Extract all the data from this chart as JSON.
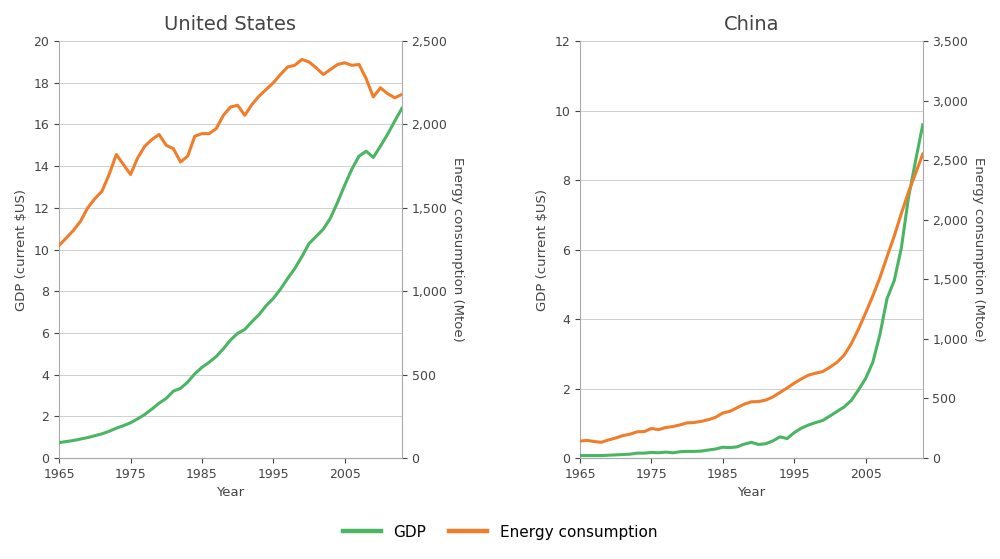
{
  "title_us": "United States",
  "title_cn": "China",
  "xlabel": "Year",
  "ylabel_left": "GDP (current $US)",
  "ylabel_right": "Energy consumption (Mtoe)",
  "gdp_color": "#4ab562",
  "energy_color": "#f07d2a",
  "legend_gdp": "GDP",
  "legend_energy": "Energy consumption",
  "us_years": [
    1965,
    1966,
    1967,
    1968,
    1969,
    1970,
    1971,
    1972,
    1973,
    1974,
    1975,
    1976,
    1977,
    1978,
    1979,
    1980,
    1981,
    1982,
    1983,
    1984,
    1985,
    1986,
    1987,
    1988,
    1989,
    1990,
    1991,
    1992,
    1993,
    1994,
    1995,
    1996,
    1997,
    1998,
    1999,
    2000,
    2001,
    2002,
    2003,
    2004,
    2005,
    2006,
    2007,
    2008,
    2009,
    2010,
    2011,
    2012,
    2013
  ],
  "us_gdp": [
    0.74,
    0.79,
    0.84,
    0.91,
    0.98,
    1.07,
    1.16,
    1.28,
    1.43,
    1.55,
    1.69,
    1.88,
    2.09,
    2.35,
    2.63,
    2.86,
    3.21,
    3.34,
    3.64,
    4.04,
    4.35,
    4.59,
    4.87,
    5.24,
    5.66,
    5.98,
    6.17,
    6.54,
    6.88,
    7.31,
    7.66,
    8.1,
    8.61,
    9.09,
    9.66,
    10.29,
    10.63,
    10.98,
    11.51,
    12.27,
    13.09,
    13.86,
    14.48,
    14.72,
    14.42,
    14.96,
    15.53,
    16.16,
    16.77
  ],
  "us_energy": [
    1275,
    1320,
    1365,
    1420,
    1500,
    1555,
    1600,
    1700,
    1820,
    1760,
    1700,
    1800,
    1870,
    1910,
    1940,
    1875,
    1855,
    1775,
    1810,
    1930,
    1945,
    1945,
    1975,
    2055,
    2105,
    2115,
    2055,
    2120,
    2170,
    2210,
    2250,
    2300,
    2345,
    2355,
    2390,
    2375,
    2340,
    2300,
    2330,
    2360,
    2370,
    2355,
    2360,
    2275,
    2165,
    2220,
    2185,
    2160,
    2180
  ],
  "cn_years": [
    1965,
    1966,
    1967,
    1968,
    1969,
    1970,
    1971,
    1972,
    1973,
    1974,
    1975,
    1976,
    1977,
    1978,
    1979,
    1980,
    1981,
    1982,
    1983,
    1984,
    1985,
    1986,
    1987,
    1988,
    1989,
    1990,
    1991,
    1992,
    1993,
    1994,
    1995,
    1996,
    1997,
    1998,
    1999,
    2000,
    2001,
    2002,
    2003,
    2004,
    2005,
    2006,
    2007,
    2008,
    2009,
    2010,
    2011,
    2012,
    2013
  ],
  "cn_gdp": [
    0.07,
    0.07,
    0.07,
    0.07,
    0.08,
    0.09,
    0.1,
    0.11,
    0.14,
    0.14,
    0.16,
    0.15,
    0.17,
    0.15,
    0.18,
    0.19,
    0.19,
    0.2,
    0.23,
    0.26,
    0.31,
    0.3,
    0.32,
    0.4,
    0.45,
    0.39,
    0.41,
    0.49,
    0.61,
    0.56,
    0.73,
    0.86,
    0.95,
    1.02,
    1.08,
    1.21,
    1.34,
    1.47,
    1.66,
    1.96,
    2.29,
    2.75,
    3.55,
    4.59,
    5.1,
    6.04,
    7.49,
    8.56,
    9.59
  ],
  "cn_energy": [
    142,
    148,
    138,
    132,
    152,
    168,
    188,
    200,
    220,
    222,
    248,
    238,
    256,
    264,
    278,
    295,
    298,
    308,
    322,
    342,
    378,
    392,
    422,
    452,
    472,
    474,
    486,
    512,
    550,
    588,
    628,
    664,
    696,
    712,
    726,
    762,
    804,
    864,
    960,
    1082,
    1218,
    1360,
    1514,
    1690,
    1862,
    2052,
    2232,
    2390,
    2552
  ],
  "us_gdp_ylim": [
    0,
    20
  ],
  "us_gdp_yticks": [
    0,
    2,
    4,
    6,
    8,
    10,
    12,
    14,
    16,
    18,
    20
  ],
  "us_energy_ylim": [
    0,
    2500
  ],
  "us_energy_yticks": [
    0,
    500,
    1000,
    1500,
    2000,
    2500
  ],
  "cn_gdp_ylim": [
    0,
    12
  ],
  "cn_gdp_yticks": [
    0,
    2,
    4,
    6,
    8,
    10,
    12
  ],
  "cn_energy_ylim": [
    0,
    3500
  ],
  "cn_energy_yticks": [
    0,
    500,
    1000,
    1500,
    2000,
    2500,
    3000,
    3500
  ],
  "xticks": [
    1965,
    1975,
    1985,
    1995,
    2005
  ],
  "background_color": "#ffffff",
  "line_width": 2.2,
  "title_fontsize": 14,
  "label_fontsize": 9.5,
  "tick_fontsize": 9,
  "legend_fontsize": 11,
  "grid_color": "#d0d0d0",
  "spine_color": "#aaaaaa",
  "text_color": "#444444"
}
